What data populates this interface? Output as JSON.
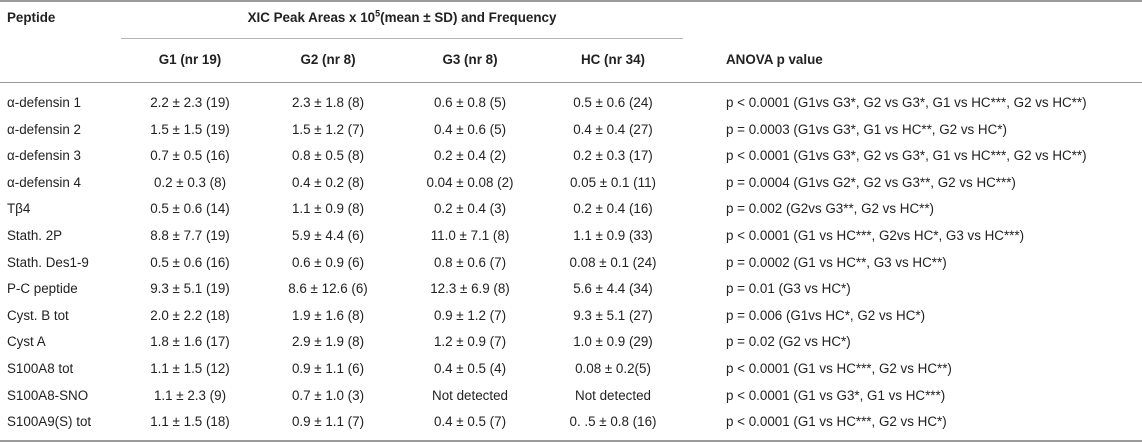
{
  "table": {
    "headers": {
      "peptide": "Peptide",
      "span_title": "XIC Peak Areas x 10",
      "span_title_sup": "5",
      "span_title_suffix": "(mean ± SD) and Frequency",
      "g1": "G1 (nr 19)",
      "g2": "G2 (nr 8)",
      "g3": "G3 (nr 8)",
      "hc": "HC (nr 34)",
      "anova": "ANOVA p value"
    },
    "rows": [
      {
        "peptide": "α-defensin 1",
        "g1": "2.2 ± 2.3 (19)",
        "g2": "2.3 ± 1.8 (8)",
        "g3": "0.6 ± 0.8 (5)",
        "hc": "0.5 ± 0.6 (24)",
        "anova": "p < 0.0001 (G1vs G3*, G2 vs G3*, G1 vs HC***, G2 vs HC**)"
      },
      {
        "peptide": "α-defensin 2",
        "g1": "1.5 ± 1.5 (19)",
        "g2": "1.5 ± 1.2 (7)",
        "g3": "0.4 ± 0.6 (5)",
        "hc": "0.4 ± 0.4 (27)",
        "anova": "p = 0.0003 (G1vs G3*, G1 vs HC**, G2 vs HC*)"
      },
      {
        "peptide": "α-defensin 3",
        "g1": "0.7 ± 0.5 (16)",
        "g2": "0.8 ± 0.5 (8)",
        "g3": "0.2 ± 0.4 (2)",
        "hc": "0.2 ± 0.3 (17)",
        "anova": "p < 0.0001 (G1vs G3*, G2 vs G3*, G1 vs HC***, G2 vs HC**)"
      },
      {
        "peptide": "α-defensin 4",
        "g1": "0.2 ± 0.3 (8)",
        "g2": "0.4 ± 0.2 (8)",
        "g3": "0.04 ± 0.08 (2)",
        "hc": "0.05 ± 0.1 (11)",
        "anova": "p = 0.0004 (G1vs G2*, G2 vs G3**, G2 vs HC***)"
      },
      {
        "peptide": "Tβ4",
        "g1": "0.5 ± 0.6 (14)",
        "g2": "1.1 ± 0.9 (8)",
        "g3": "0.2 ± 0.4 (3)",
        "hc": "0.2 ± 0.4 (16)",
        "anova": "p = 0.002 (G2vs G3**, G2 vs HC**)"
      },
      {
        "peptide": "Stath. 2P",
        "g1": "8.8 ± 7.7 (19)",
        "g2": "5.9 ± 4.4 (6)",
        "g3": "11.0 ± 7.1 (8)",
        "hc": "1.1 ± 0.9 (33)",
        "anova": "p < 0.0001 (G1 vs HC***, G2vs HC*, G3 vs HC***)"
      },
      {
        "peptide": "Stath. Des1-9",
        "g1": "0.5 ± 0.6 (16)",
        "g2": "0.6 ± 0.9 (6)",
        "g3": "0.8 ± 0.6 (7)",
        "hc": "0.08 ± 0.1 (24)",
        "anova": "p = 0.0002 (G1 vs HC**, G3 vs HC**)"
      },
      {
        "peptide": "P-C peptide",
        "g1": "9.3 ± 5.1 (19)",
        "g2": "8.6 ± 12.6 (6)",
        "g3": "12.3 ± 6.9 (8)",
        "hc": "5.6 ± 4.4 (34)",
        "anova": "p = 0.01 (G3 vs HC*)"
      },
      {
        "peptide": "Cyst. B tot",
        "g1": "2.0 ± 2.2 (18)",
        "g2": "1.9 ± 1.6 (8)",
        "g3": "0.9 ± 1.2 (7)",
        "hc": "9.3 ± 5.1 (27)",
        "anova": "p = 0.006 (G1vs HC*, G2 vs HC*)"
      },
      {
        "peptide": "Cyst A",
        "g1": "1.8 ± 1.6 (17)",
        "g2": "2.9 ± 1.9 (8)",
        "g3": "1.2 ± 0.9 (7)",
        "hc": "1.0 ± 0.9 (29)",
        "anova": "p = 0.02 (G2 vs HC*)"
      },
      {
        "peptide": "S100A8 tot",
        "g1": "1.1 ± 1.5 (12)",
        "g2": "0.9 ± 1.1 (6)",
        "g3": "0.4 ± 0.5 (4)",
        "hc": "0.08 ± 0.2(5)",
        "anova": "p < 0.0001 (G1 vs HC***, G2 vs HC**)"
      },
      {
        "peptide": "S100A8-SNO",
        "g1": "1.1 ± 2.3 (9)",
        "g2": "0.7 ± 1.0 (3)",
        "g3": "Not detected",
        "hc": "Not detected",
        "anova": "p < 0.0001 (G1 vs G3*, G1 vs HC***)"
      },
      {
        "peptide": "S100A9(S) tot",
        "g1": "1.1 ± 1.5 (18)",
        "g2": "0.9 ± 1.1 (7)",
        "g3": "0.4 ± 0.5 (7)",
        "hc": "0. .5 ± 0.8 (16)",
        "anova": "p < 0.0001 (G1 vs HC***, G2 vs HC*)"
      }
    ]
  }
}
